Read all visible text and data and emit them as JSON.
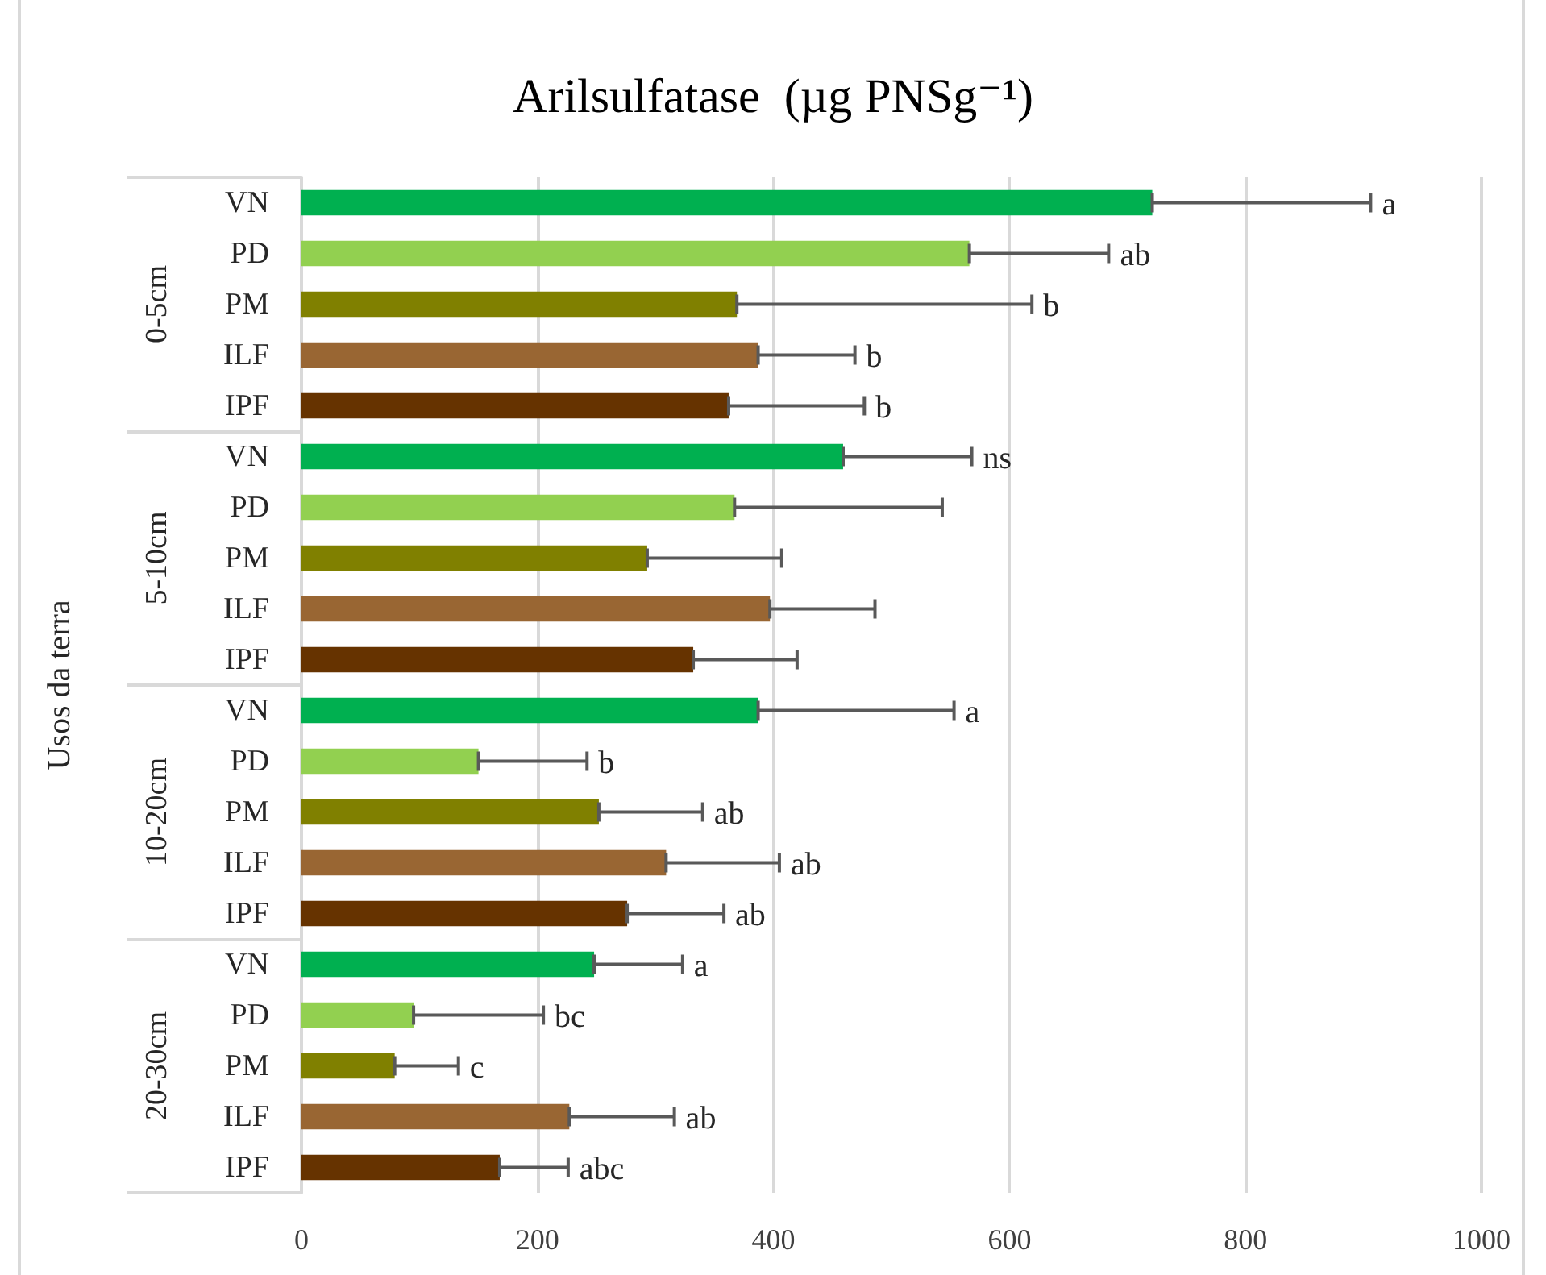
{
  "chart_data": {
    "type": "bar",
    "orientation": "horizontal",
    "title": "Arilsulfatase  (µg PNSg⁻¹)",
    "ylabel": "Usos da terra",
    "categories": [
      "0-5cm",
      "5-10cm",
      "10-20cm",
      "20-30cm"
    ],
    "series": [
      {
        "name": "VN",
        "color": "#00b050",
        "values": [
          721,
          459,
          387,
          248
        ],
        "errors": [
          [
            721,
            906
          ],
          [
            459,
            568
          ],
          [
            387,
            553
          ],
          [
            248,
            323
          ]
        ]
      },
      {
        "name": "PD",
        "color": "#92d050",
        "values": [
          566,
          367,
          150,
          95
        ],
        "errors": [
          [
            566,
            684
          ],
          [
            367,
            543
          ],
          [
            150,
            242
          ],
          [
            95,
            205
          ]
        ]
      },
      {
        "name": "PM",
        "color": "#808000",
        "values": [
          369,
          293,
          252,
          79
        ],
        "errors": [
          [
            369,
            619
          ],
          [
            293,
            407
          ],
          [
            252,
            340
          ],
          [
            79,
            133
          ]
        ]
      },
      {
        "name": "ILF",
        "color": "#996633",
        "values": [
          387,
          397,
          309,
          227
        ],
        "errors": [
          [
            387,
            469
          ],
          [
            397,
            486
          ],
          [
            309,
            405
          ],
          [
            227,
            316
          ]
        ]
      },
      {
        "name": "IPF",
        "color": "#663300",
        "values": [
          362,
          332,
          276,
          168
        ],
        "errors": [
          [
            362,
            477
          ],
          [
            332,
            420
          ],
          [
            276,
            358
          ],
          [
            168,
            226
          ]
        ]
      }
    ],
    "annotations": [
      {
        "text": "a",
        "x": 906
      },
      {
        "text": "ab",
        "x": 684
      },
      {
        "text": "b",
        "x": 619
      },
      {
        "text": "b",
        "x": 469
      },
      {
        "text": "b",
        "x": 477
      },
      {
        "text": "ns",
        "x": 568
      },
      {
        "text": "a",
        "x": 553
      },
      {
        "text": "b",
        "x": 242
      },
      {
        "text": "ab",
        "x": 340
      },
      {
        "text": "ab",
        "x": 405
      },
      {
        "text": "ab",
        "x": 358
      },
      {
        "text": "a",
        "x": 323
      },
      {
        "text": "bc",
        "x": 205
      },
      {
        "text": "c",
        "x": 133
      },
      {
        "text": "ab",
        "x": 316
      },
      {
        "text": "abc",
        "x": 226
      }
    ],
    "xlim": [
      0,
      1000
    ],
    "xticks": [
      0,
      200,
      400,
      600,
      800,
      1000
    ],
    "grid": "x"
  }
}
